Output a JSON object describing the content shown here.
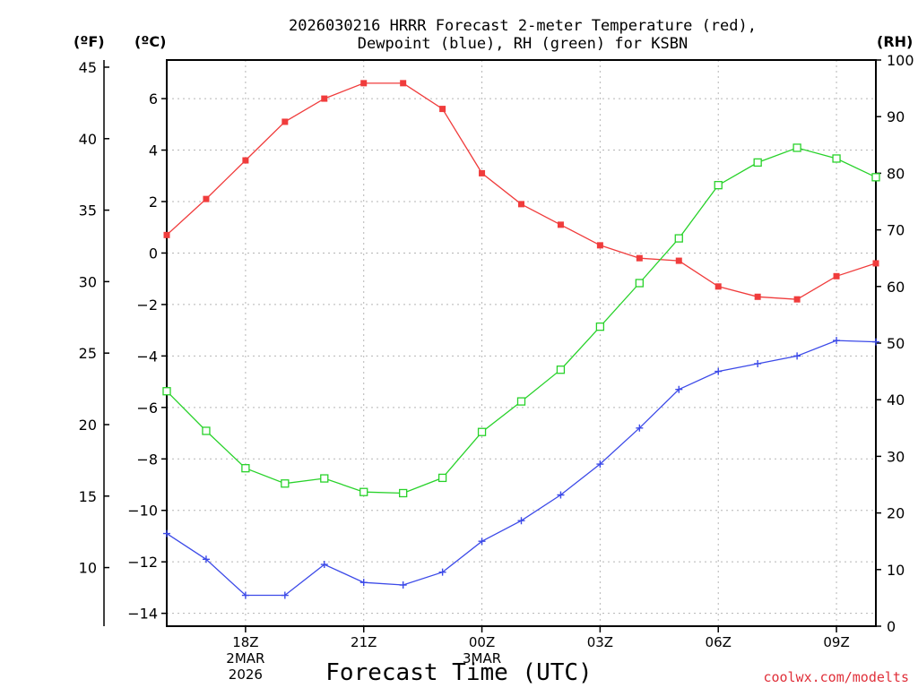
{
  "chart_data": {
    "type": "line",
    "title_lines": [
      "2026030216 HRRR Forecast 2-meter Temperature (red),",
      "Dewpoint (blue), RH (green) for KSBN"
    ],
    "unit_labels": {
      "fahrenheit": "(ºF)",
      "celsius": "(ºC)",
      "rh": "(RH)"
    },
    "xlabel": "Forecast Time (UTC)",
    "credit": "coolwx.com/modelts",
    "x_hours": [
      16,
      17,
      18,
      19,
      20,
      21,
      22,
      23,
      24,
      25,
      26,
      27,
      28,
      29,
      30,
      31,
      32,
      33,
      34
    ],
    "xlim": [
      16,
      34
    ],
    "x_ticks": [
      {
        "hour": 18,
        "lines": [
          "18Z",
          "2MAR",
          "2026"
        ]
      },
      {
        "hour": 21,
        "lines": [
          "21Z"
        ]
      },
      {
        "hour": 24,
        "lines": [
          "00Z",
          "3MAR"
        ]
      },
      {
        "hour": 27,
        "lines": [
          "03Z"
        ]
      },
      {
        "hour": 30,
        "lines": [
          "06Z"
        ]
      },
      {
        "hour": 33,
        "lines": [
          "09Z"
        ]
      }
    ],
    "celsius_axis": {
      "ylim": [
        -14.5,
        7.5
      ],
      "ticks": [
        6,
        4,
        2,
        0,
        -2,
        -4,
        -6,
        -8,
        -10,
        -12,
        -14
      ],
      "tick_labels": [
        "6",
        "4",
        "2",
        "0",
        "−2",
        "−4",
        "−6",
        "−8",
        "−10",
        "−12",
        "−14"
      ]
    },
    "fahrenheit_axis": {
      "ylim": [
        5.9,
        45.5
      ],
      "ticks": [
        45,
        40,
        35,
        30,
        25,
        20,
        15,
        10
      ]
    },
    "rh_axis": {
      "ylim": [
        0,
        100
      ],
      "ticks": [
        100,
        90,
        80,
        70,
        60,
        50,
        40,
        30,
        20,
        10,
        0
      ]
    },
    "series": [
      {
        "name": "Temperature",
        "units": "°C",
        "color": "#f03c3c",
        "marker": "filled-square",
        "values": [
          0.7,
          2.1,
          3.6,
          5.1,
          6.0,
          6.6,
          6.6,
          5.6,
          3.1,
          1.9,
          1.1,
          0.3,
          -0.2,
          -0.3,
          -1.3,
          -1.7,
          -1.8,
          -0.9,
          -0.4
        ]
      },
      {
        "name": "Dewpoint",
        "units": "°C",
        "color": "#3c4ae8",
        "marker": "plus",
        "values": [
          -10.9,
          -11.9,
          -13.3,
          -13.3,
          -12.1,
          -12.8,
          -12.9,
          -12.4,
          -11.2,
          -10.4,
          -9.4,
          -8.2,
          -6.8,
          -5.3,
          -4.6,
          -4.3,
          -4.0,
          -3.4,
          -3.45
        ]
      },
      {
        "name": "RH",
        "units": "%",
        "color": "#28d22a",
        "marker": "open-square",
        "values": [
          41.5,
          34.5,
          27.9,
          25.2,
          26.1,
          23.7,
          23.5,
          26.2,
          34.3,
          39.7,
          45.3,
          52.9,
          60.6,
          68.5,
          77.9,
          81.9,
          84.5,
          82.6,
          79.3
        ]
      }
    ]
  }
}
